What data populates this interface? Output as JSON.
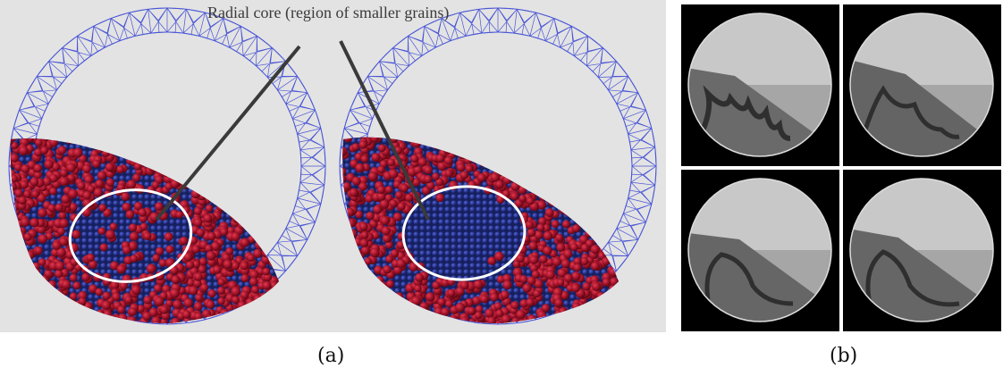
{
  "panel_a": {
    "annotation": "Radial core (region of smaller grains)",
    "caption": "(a)",
    "colors": {
      "large_grains": "#a0122a",
      "small_grains": "#27338a",
      "mesh": "#4a56d6",
      "core_outline": "#ffffff",
      "background": "#e3e3e3"
    }
  },
  "panel_b": {
    "caption": "(b)",
    "colors": {
      "background": "#000000",
      "drum_fill": "#9a9a9a",
      "bed": "#555555",
      "streak": "#2f2f2f"
    }
  }
}
